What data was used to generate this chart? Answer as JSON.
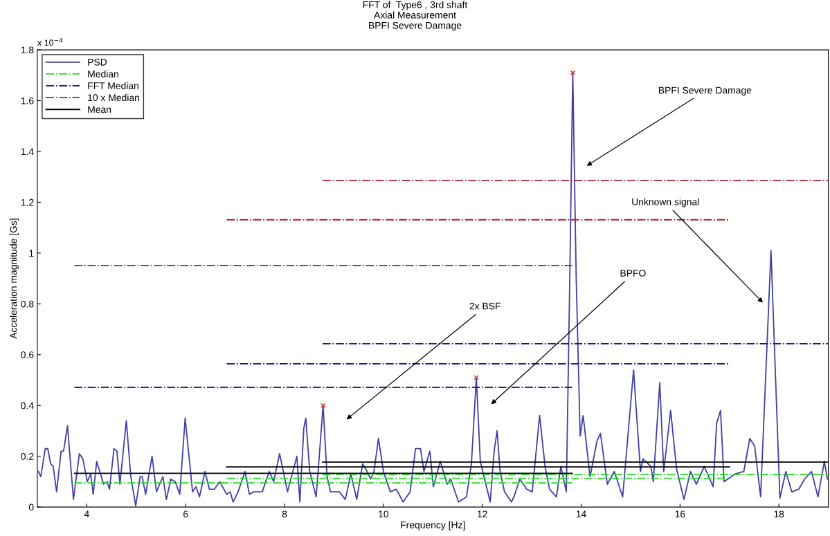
{
  "chart_data": {
    "type": "line",
    "title": "FFT of  Type6 , 3rd shaft\nAxial Measurement\nBPFI Severe Damage",
    "xlabel": "Frequency [Hz]",
    "ylabel": "Acceleration magnitude [Gs]",
    "xlim": [
      3,
      19
    ],
    "xticks": [
      4,
      6,
      8,
      10,
      12,
      14,
      16,
      18
    ],
    "ylim": [
      0,
      1.8
    ],
    "yticks": [
      0,
      0.2,
      0.4,
      0.6,
      0.8,
      1,
      1.2,
      1.4,
      1.6,
      1.8
    ],
    "grid": false,
    "legend": "top left",
    "series": [
      {
        "name": "PSD",
        "color": "#3f3fa8",
        "line_style": "solid",
        "x": [
          3.02,
          3.07,
          3.16,
          3.21,
          3.27,
          3.32,
          3.39,
          3.48,
          3.53,
          3.61,
          3.73,
          3.85,
          3.92,
          4.01,
          4.08,
          4.13,
          4.2,
          4.34,
          4.41,
          4.46,
          4.55,
          4.61,
          4.67,
          4.8,
          4.89,
          4.99,
          5.08,
          5.12,
          5.19,
          5.32,
          5.41,
          5.54,
          5.61,
          5.7,
          5.79,
          5.88,
          5.99,
          6.14,
          6.21,
          6.28,
          6.39,
          6.48,
          6.58,
          6.69,
          6.83,
          6.9,
          6.96,
          7.06,
          7.2,
          7.29,
          7.38,
          7.55,
          7.69,
          7.78,
          7.9,
          8.06,
          8.25,
          8.31,
          8.39,
          8.43,
          8.51,
          8.64,
          8.78,
          8.86,
          8.93,
          9.11,
          9.23,
          9.34,
          9.46,
          9.58,
          9.67,
          9.74,
          9.81,
          9.9,
          10.0,
          10.14,
          10.26,
          10.4,
          10.54,
          10.65,
          10.75,
          10.82,
          10.94,
          11.01,
          11.15,
          11.29,
          11.36,
          11.52,
          11.68,
          11.78,
          11.88,
          11.96,
          12.06,
          12.16,
          12.24,
          12.3,
          12.36,
          12.45,
          12.59,
          12.64,
          12.76,
          12.9,
          13.01,
          13.16,
          13.27,
          13.36,
          13.5,
          13.59,
          13.7,
          13.77,
          13.83,
          13.9,
          13.98,
          14.04,
          14.18,
          14.32,
          14.39,
          14.53,
          14.67,
          14.84,
          15.06,
          15.2,
          15.25,
          15.41,
          15.46,
          15.59,
          15.67,
          15.81,
          15.93,
          16.08,
          16.21,
          16.33,
          16.49,
          16.67,
          16.74,
          16.82,
          16.89,
          17.11,
          17.29,
          17.41,
          17.51,
          17.63,
          17.84,
          18.02,
          18.14,
          18.26,
          18.4,
          18.52,
          18.66,
          18.79,
          18.92,
          18.98
        ],
        "values": [
          0.14,
          0.12,
          0.23,
          0.23,
          0.17,
          0.16,
          0.06,
          0.22,
          0.22,
          0.32,
          0.03,
          0.21,
          0.19,
          0.1,
          0.13,
          0.05,
          0.18,
          0.09,
          0.1,
          0.07,
          0.23,
          0.22,
          0.09,
          0.34,
          0.12,
          0.005,
          0.12,
          0.12,
          0.05,
          0.2,
          0.06,
          0.12,
          0.03,
          0.11,
          0.1,
          0.05,
          0.35,
          0.06,
          0.08,
          0.04,
          0.14,
          0.07,
          0.07,
          0.1,
          0.05,
          0.06,
          0.02,
          0.06,
          0.14,
          0.05,
          0.06,
          0.06,
          0.14,
          0.1,
          0.21,
          0.06,
          0.2,
          0.02,
          0.31,
          0.35,
          0.14,
          0.04,
          0.4,
          0.12,
          0.06,
          0.06,
          0.03,
          0.13,
          0.03,
          0.17,
          0.14,
          0.11,
          0.14,
          0.27,
          0.14,
          0.06,
          0.07,
          0.02,
          0.06,
          0.23,
          0.23,
          0.14,
          0.22,
          0.08,
          0.18,
          0.09,
          0.11,
          0.02,
          0.04,
          0.17,
          0.51,
          0.18,
          0.1,
          0.02,
          0.22,
          0.3,
          0.14,
          0.06,
          0.02,
          0.04,
          0.11,
          0.07,
          0.06,
          0.36,
          0.16,
          0.07,
          0.04,
          0.16,
          0.06,
          0.9,
          1.71,
          0.9,
          0.28,
          0.36,
          0.12,
          0.26,
          0.29,
          0.09,
          0.14,
          0.04,
          0.54,
          0.14,
          0.19,
          0.16,
          0.1,
          0.49,
          0.14,
          0.38,
          0.15,
          0.03,
          0.14,
          0.09,
          0.16,
          0.08,
          0.33,
          0.38,
          0.1,
          0.13,
          0.14,
          0.27,
          0.24,
          0.04,
          1.01,
          0.035,
          0.14,
          0.06,
          0.07,
          0.11,
          0.14,
          0.04,
          0.18,
          0.11
        ]
      },
      {
        "name": "Median",
        "color": "#22dd22",
        "line_style": "dashdot",
        "x": [
          3.75,
          13.82,
          null,
          6.83,
          17.0,
          null,
          8.77,
          19
        ],
        "values": [
          0.095,
          0.095,
          null,
          0.113,
          0.113,
          null,
          0.128,
          0.128
        ]
      },
      {
        "name": "FFT Median",
        "color": "#1a1a8c",
        "line_style": "dashdot",
        "x": [
          3.75,
          13.82,
          null,
          6.83,
          17.0,
          null,
          8.77,
          19
        ],
        "values": [
          0.471,
          0.471,
          null,
          0.564,
          0.564,
          null,
          0.643,
          0.643
        ]
      },
      {
        "name": "10 x Median",
        "color": "#b01c2c",
        "line_style": "dashdot",
        "x": [
          3.75,
          13.82,
          null,
          6.83,
          17.0,
          null,
          8.77,
          19
        ],
        "values": [
          0.951,
          0.951,
          null,
          1.131,
          1.131,
          null,
          1.286,
          1.286
        ]
      },
      {
        "name": "Mean",
        "color": "#000000",
        "line_style": "solid",
        "x": [
          3.75,
          13.82,
          null,
          6.83,
          17.0,
          null,
          8.77,
          19
        ],
        "values": [
          0.133,
          0.133,
          null,
          0.158,
          0.158,
          null,
          0.177,
          0.177
        ]
      },
      {
        "type": "scatter",
        "color": "#dd2222",
        "marker": "cross",
        "x": [
          8.78,
          11.88,
          13.83
        ],
        "values": [
          0.4,
          0.51,
          1.71
        ]
      }
    ],
    "annotations": [
      "x 10$^{−4}$",
      "BPFI Severe Damage",
      "Unknown signal",
      "BPFO",
      "2x BSF"
    ]
  }
}
